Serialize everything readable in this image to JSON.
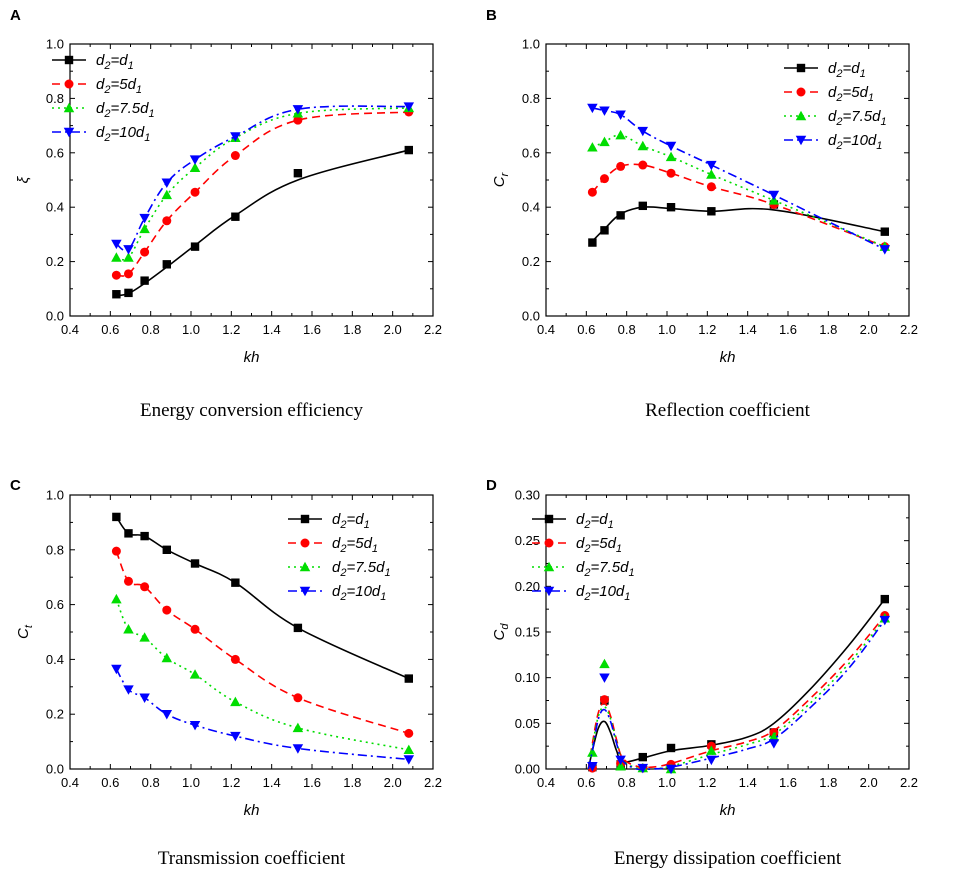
{
  "chart_data": [
    {
      "panel": "A",
      "type": "line",
      "caption": "Energy conversion efficiency",
      "xlabel": "kh",
      "ylabel": "ξ",
      "xlim": [
        0.4,
        2.2
      ],
      "ylim": [
        0.0,
        1.0
      ],
      "xticks": [
        "0.4",
        "0.6",
        "0.8",
        "1.0",
        "1.2",
        "1.4",
        "1.6",
        "1.8",
        "2.0",
        "2.2"
      ],
      "yticks": [
        "0.0",
        "0.2",
        "0.4",
        "0.6",
        "0.8",
        "1.0"
      ],
      "legend_position": "top-left",
      "x": [
        0.63,
        0.69,
        0.77,
        0.88,
        1.02,
        1.22,
        1.53,
        2.08
      ],
      "series": [
        {
          "name": "d2=d1",
          "label_base": "d",
          "label_sub": "2",
          "label_mid": "=d",
          "label_sub2": "1",
          "values": [
            0.08,
            0.085,
            0.13,
            0.19,
            0.255,
            0.365,
            0.525,
            0.61
          ],
          "fit": [
            0.075,
            0.083,
            0.12,
            0.18,
            0.26,
            0.37,
            0.5,
            0.61
          ]
        },
        {
          "name": "d2=5d1",
          "label_base": "d",
          "label_sub": "2",
          "label_mid": "=5d",
          "label_sub2": "1",
          "values": [
            0.15,
            0.155,
            0.235,
            0.35,
            0.455,
            0.59,
            0.72,
            0.75
          ]
        },
        {
          "name": "d2=7.5d1",
          "label_base": "d",
          "label_sub": "2",
          "label_mid": "=7.5d",
          "label_sub2": "1",
          "values": [
            0.215,
            0.215,
            0.32,
            0.445,
            0.545,
            0.655,
            0.745,
            0.765
          ]
        },
        {
          "name": "d2=10d1",
          "label_base": "d",
          "label_sub": "2",
          "label_mid": "=10d",
          "label_sub2": "1",
          "values": [
            0.265,
            0.245,
            0.36,
            0.49,
            0.575,
            0.66,
            0.76,
            0.77
          ]
        }
      ]
    },
    {
      "panel": "B",
      "type": "line",
      "caption": "Reflection coefficient",
      "xlabel": "kh",
      "ylabel": "C",
      "ylabel_sub": "r",
      "xlim": [
        0.4,
        2.2
      ],
      "ylim": [
        0.0,
        1.0
      ],
      "xticks": [
        "0.4",
        "0.6",
        "0.8",
        "1.0",
        "1.2",
        "1.4",
        "1.6",
        "1.8",
        "2.0",
        "2.2"
      ],
      "yticks": [
        "0.0",
        "0.2",
        "0.4",
        "0.6",
        "0.8",
        "1.0"
      ],
      "legend_position": "top-right",
      "x": [
        0.63,
        0.69,
        0.77,
        0.88,
        1.02,
        1.22,
        1.53,
        2.08
      ],
      "series": [
        {
          "name": "d2=d1",
          "label_base": "d",
          "label_sub": "2",
          "label_mid": "=d",
          "label_sub2": "1",
          "values": [
            0.27,
            0.315,
            0.37,
            0.405,
            0.4,
            0.385,
            0.41,
            0.31
          ],
          "fit": [
            0.275,
            0.32,
            0.375,
            0.4,
            0.395,
            0.385,
            0.39,
            0.31
          ]
        },
        {
          "name": "d2=5d1",
          "label_base": "d",
          "label_sub": "2",
          "label_mid": "=5d",
          "label_sub2": "1",
          "values": [
            0.455,
            0.505,
            0.55,
            0.555,
            0.525,
            0.475,
            0.41,
            0.255
          ]
        },
        {
          "name": "d2=7.5d1",
          "label_base": "d",
          "label_sub": "2",
          "label_mid": "=7.5d",
          "label_sub2": "1",
          "values": [
            0.62,
            0.64,
            0.665,
            0.625,
            0.585,
            0.52,
            0.425,
            0.255
          ]
        },
        {
          "name": "d2=10d1",
          "label_base": "d",
          "label_sub": "2",
          "label_mid": "=10d",
          "label_sub2": "1",
          "values": [
            0.765,
            0.755,
            0.74,
            0.68,
            0.625,
            0.555,
            0.445,
            0.245
          ]
        }
      ]
    },
    {
      "panel": "C",
      "type": "line",
      "caption": "Transmission coefficient",
      "xlabel": "kh",
      "ylabel": "C",
      "ylabel_sub": "t",
      "xlim": [
        0.4,
        2.2
      ],
      "ylim": [
        0.0,
        1.0
      ],
      "xticks": [
        "0.4",
        "0.6",
        "0.8",
        "1.0",
        "1.2",
        "1.4",
        "1.6",
        "1.8",
        "2.0",
        "2.2"
      ],
      "yticks": [
        "0.0",
        "0.2",
        "0.4",
        "0.6",
        "0.8",
        "1.0"
      ],
      "legend_position": "top-right",
      "x": [
        0.63,
        0.69,
        0.77,
        0.88,
        1.02,
        1.22,
        1.53,
        2.08
      ],
      "series": [
        {
          "name": "d2=d1",
          "label_base": "d",
          "label_sub": "2",
          "label_mid": "=d",
          "label_sub2": "1",
          "values": [
            0.92,
            0.86,
            0.85,
            0.8,
            0.75,
            0.68,
            0.515,
            0.33
          ]
        },
        {
          "name": "d2=5d1",
          "label_base": "d",
          "label_sub": "2",
          "label_mid": "=5d",
          "label_sub2": "1",
          "values": [
            0.795,
            0.685,
            0.665,
            0.58,
            0.51,
            0.4,
            0.26,
            0.13
          ]
        },
        {
          "name": "d2=7.5d1",
          "label_base": "d",
          "label_sub": "2",
          "label_mid": "=7.5d",
          "label_sub2": "1",
          "values": [
            0.62,
            0.51,
            0.48,
            0.405,
            0.345,
            0.245,
            0.15,
            0.07
          ]
        },
        {
          "name": "d2=10d1",
          "label_base": "d",
          "label_sub": "2",
          "label_mid": "=10d",
          "label_sub2": "1",
          "values": [
            0.365,
            0.29,
            0.26,
            0.2,
            0.16,
            0.12,
            0.075,
            0.035
          ]
        }
      ]
    },
    {
      "panel": "D",
      "type": "line",
      "caption": "Energy dissipation coefficient",
      "xlabel": "kh",
      "ylabel": "C",
      "ylabel_sub": "d",
      "xlim": [
        0.4,
        2.2
      ],
      "ylim": [
        0.0,
        0.3
      ],
      "xticks": [
        "0.4",
        "0.6",
        "0.8",
        "1.0",
        "1.2",
        "1.4",
        "1.6",
        "1.8",
        "2.0",
        "2.2"
      ],
      "yticks": [
        "0.00",
        "0.05",
        "0.10",
        "0.15",
        "0.20",
        "0.25",
        "0.30"
      ],
      "legend_position": "top-left",
      "x": [
        0.63,
        0.69,
        0.77,
        0.88,
        1.02,
        1.22,
        1.53,
        2.08
      ],
      "series": [
        {
          "name": "d2=d1",
          "label_base": "d",
          "label_sub": "2",
          "label_mid": "=d",
          "label_sub2": "1",
          "values": [
            0.002,
            0.075,
            0.005,
            0.013,
            0.023,
            0.027,
            0.04,
            0.186
          ],
          "fit_x": [
            0.61,
            0.63,
            0.66,
            0.69,
            0.72,
            0.75,
            0.78,
            0.88,
            1.02,
            1.22,
            1.4,
            1.53,
            1.7,
            1.9,
            2.08
          ],
          "fit": [
            0.0,
            0.02,
            0.045,
            0.052,
            0.04,
            0.02,
            0.008,
            0.012,
            0.02,
            0.026,
            0.035,
            0.05,
            0.085,
            0.135,
            0.186
          ]
        },
        {
          "name": "d2=5d1",
          "label_base": "d",
          "label_sub": "2",
          "label_mid": "=5d",
          "label_sub2": "1",
          "values": [
            0.001,
            0.076,
            0.006,
            0.001,
            0.005,
            0.025,
            0.04,
            0.168
          ],
          "fit_x": [
            0.61,
            0.63,
            0.66,
            0.69,
            0.72,
            0.75,
            0.78,
            0.85,
            0.92,
            1.02,
            1.22,
            1.4,
            1.53,
            1.7,
            1.9,
            2.08
          ],
          "fit": [
            0.0,
            0.028,
            0.062,
            0.072,
            0.058,
            0.032,
            0.012,
            0.003,
            0.002,
            0.006,
            0.02,
            0.03,
            0.042,
            0.075,
            0.12,
            0.168
          ]
        },
        {
          "name": "d2=7.5d1",
          "label_base": "d",
          "label_sub": "2",
          "label_mid": "=7.5d",
          "label_sub2": "1",
          "values": [
            0.018,
            0.115,
            0.003,
            0.001,
            0.0,
            0.02,
            0.035,
            0.165
          ],
          "fit_x": [
            0.61,
            0.63,
            0.66,
            0.69,
            0.72,
            0.75,
            0.78,
            0.85,
            0.92,
            1.02,
            1.22,
            1.4,
            1.53,
            1.7,
            1.9,
            2.08
          ],
          "fit": [
            0.0,
            0.025,
            0.058,
            0.068,
            0.055,
            0.03,
            0.01,
            0.001,
            0.0,
            0.003,
            0.016,
            0.027,
            0.038,
            0.07,
            0.115,
            0.165
          ]
        },
        {
          "name": "d2=10d1",
          "label_base": "d",
          "label_sub": "2",
          "label_mid": "=10d",
          "label_sub2": "1",
          "values": [
            0.003,
            0.1,
            0.01,
            0.001,
            0.0,
            0.01,
            0.028,
            0.163
          ],
          "fit_x": [
            0.61,
            0.63,
            0.66,
            0.69,
            0.72,
            0.75,
            0.78,
            0.85,
            0.92,
            1.02,
            1.22,
            1.4,
            1.53,
            1.7,
            1.9,
            2.08
          ],
          "fit": [
            0.0,
            0.02,
            0.055,
            0.065,
            0.052,
            0.028,
            0.009,
            0.0,
            0.0,
            0.002,
            0.012,
            0.022,
            0.033,
            0.065,
            0.11,
            0.163
          ]
        }
      ]
    }
  ],
  "style": {
    "series_colors": [
      "#000000",
      "#ff0000",
      "#00dd00",
      "#0000ff"
    ],
    "series_markers": [
      "square",
      "circle",
      "triangle-up",
      "triangle-down"
    ],
    "series_dashes": [
      "none",
      "8,5",
      "2,4",
      "9,4,2,4"
    ]
  }
}
